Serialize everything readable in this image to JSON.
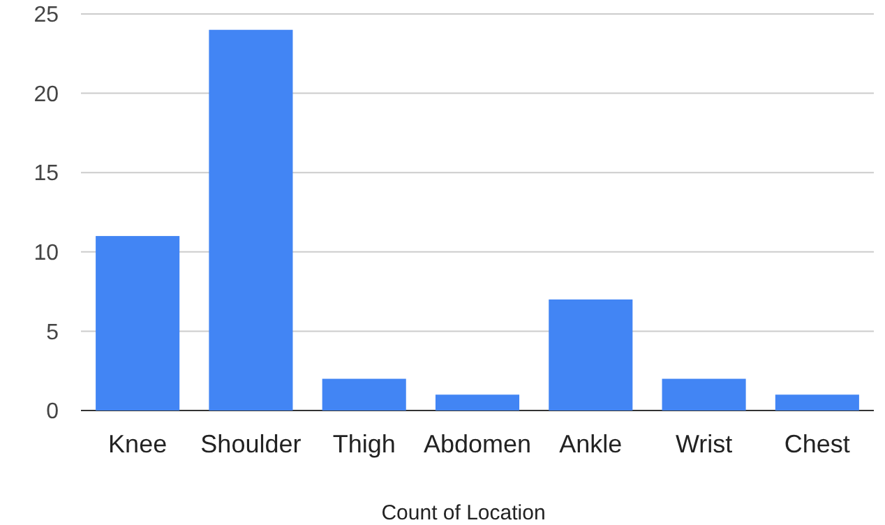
{
  "chart_data": {
    "type": "bar",
    "xlabel": "Count of Location",
    "categories": [
      "Knee",
      "Shoulder",
      "Thigh",
      "Abdomen",
      "Ankle",
      "Wrist",
      "Chest"
    ],
    "values": [
      11,
      24,
      2,
      1,
      7,
      2,
      1
    ],
    "color": "#4285f4",
    "ylim": [
      0,
      25
    ],
    "yticks": [
      0,
      5,
      10,
      15,
      20,
      25
    ],
    "grid": "y"
  }
}
